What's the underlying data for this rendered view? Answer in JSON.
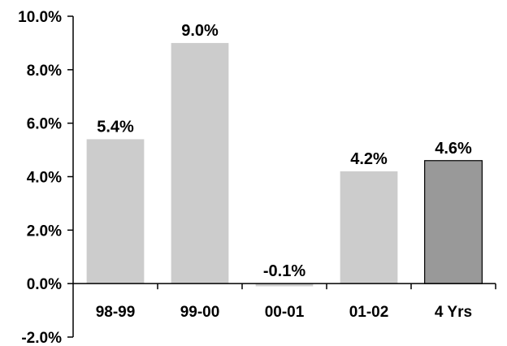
{
  "chart_data": {
    "type": "bar",
    "categories": [
      "98-99",
      "99-00",
      "00-01",
      "01-02",
      "4 Yrs"
    ],
    "values": [
      5.4,
      9.0,
      -0.1,
      4.2,
      4.6
    ],
    "data_labels": [
      "5.4%",
      "9.0%",
      "-0.1%",
      "4.2%",
      "4.6%"
    ],
    "title": "",
    "xlabel": "",
    "ylabel": "",
    "ylim": [
      -2.0,
      10.0
    ],
    "yticks": [
      -2.0,
      0.0,
      2.0,
      4.0,
      6.0,
      8.0,
      10.0
    ],
    "ytick_labels": [
      "-2.0%",
      "0.0%",
      "2.0%",
      "4.0%",
      "6.0%",
      "8.0%",
      "10.0%"
    ],
    "grid": false,
    "legend": "none",
    "colors": {
      "bar": "#cccccc",
      "highlight_bar": "#999999",
      "highlight_border": "#000000"
    },
    "highlighted_categories": [
      "4 Yrs"
    ]
  }
}
